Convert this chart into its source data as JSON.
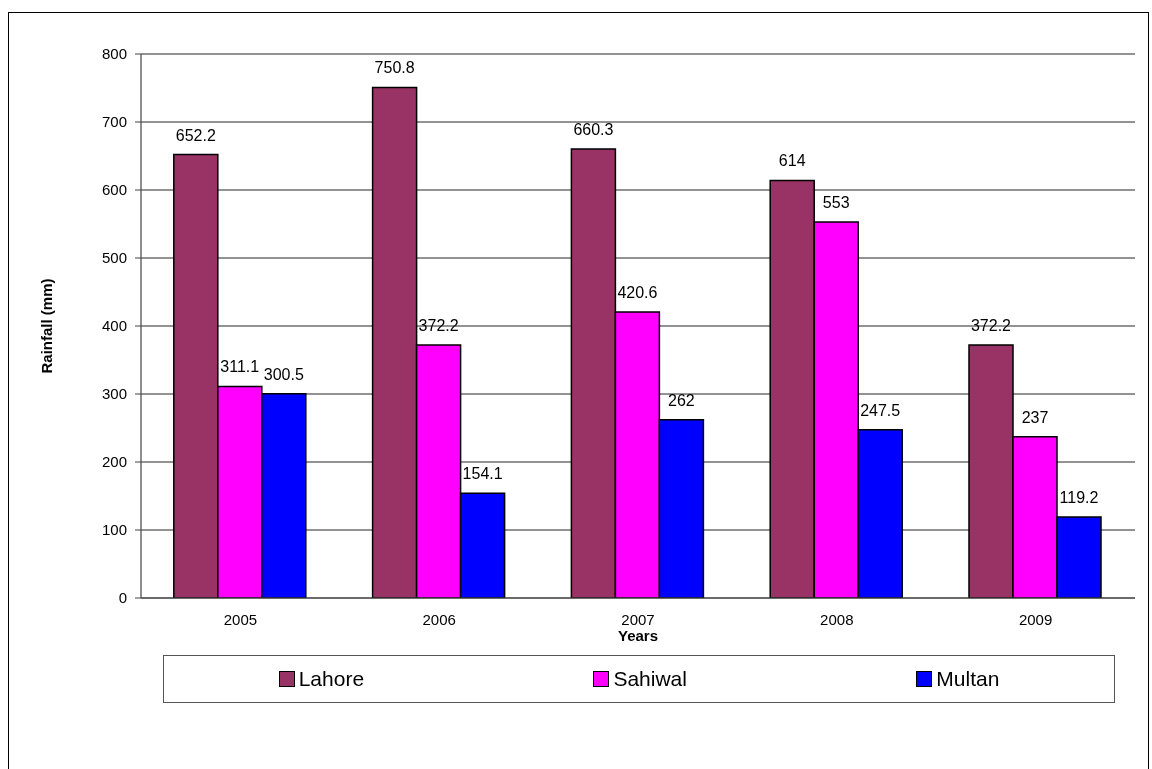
{
  "chart_data": {
    "type": "bar",
    "xlabel": "Years",
    "ylabel": "Rainfall (mm)",
    "categories": [
      "2005",
      "2006",
      "2007",
      "2008",
      "2009"
    ],
    "series": [
      {
        "name": "Lahore",
        "color": "#993366",
        "values": [
          652.2,
          750.8,
          660.3,
          614,
          372.2
        ]
      },
      {
        "name": "Sahiwal",
        "color": "#ff00ff",
        "values": [
          311.1,
          372.2,
          420.6,
          553,
          237
        ]
      },
      {
        "name": "Multan",
        "color": "#0000ff",
        "values": [
          300.5,
          154.1,
          262,
          247.5,
          119.2
        ]
      }
    ],
    "ylim": [
      0,
      800
    ],
    "yticks": [
      0,
      100,
      200,
      300,
      400,
      500,
      600,
      700,
      800
    ],
    "grid": "y",
    "legend": "bottom",
    "data_labels": true
  }
}
